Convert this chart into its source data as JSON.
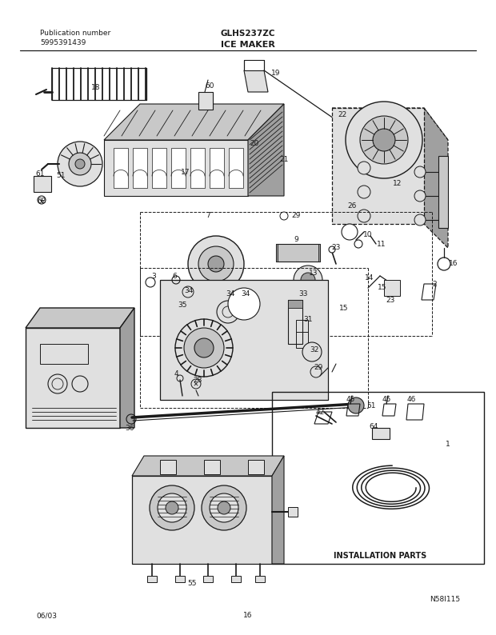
{
  "title": "ICE MAKER",
  "model": "GLHS237ZC",
  "pub_label": "Publication number",
  "pub_number": "5995391439",
  "diagram_ref": "N58I115",
  "date": "06/03",
  "page": "16",
  "bg_color": "#ffffff",
  "lc": "#1a1a1a",
  "tc": "#1a1a1a",
  "install_parts_label": "INSTALLATION PARTS",
  "gray1": "#c8c8c8",
  "gray2": "#e0e0e0",
  "gray3": "#a0a0a0",
  "gray4": "#b8b8b8"
}
